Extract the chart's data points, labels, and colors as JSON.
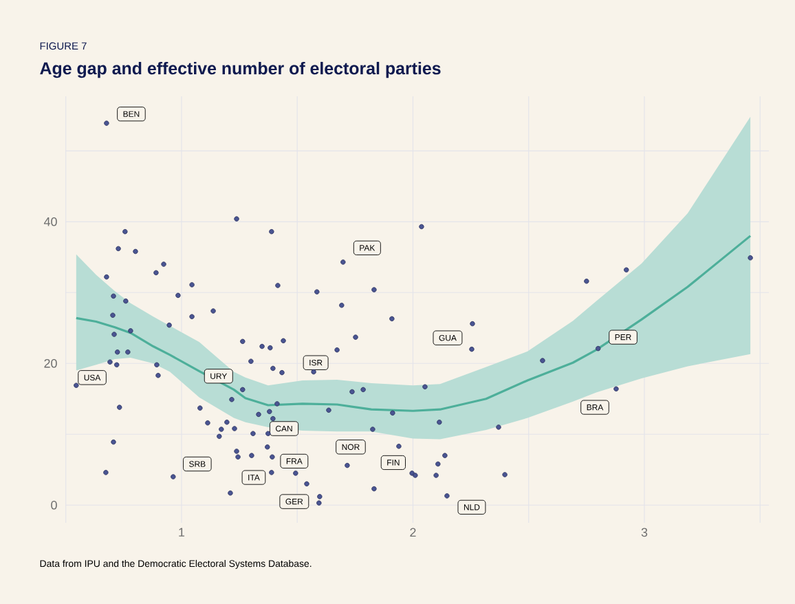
{
  "chart_data": {
    "type": "scatter",
    "subtitle": "FIGURE 7",
    "title": "Age gap and effective number of electoral parties",
    "xlim": [
      0.498,
      3.538
    ],
    "ylim": [
      -2.5,
      57.7
    ],
    "xticks": [
      {
        "value": 0.5,
        "label": null
      },
      1,
      {
        "value": 1.5,
        "label": null
      },
      2,
      {
        "value": 2.5,
        "label": null
      },
      3,
      {
        "value": 3.5,
        "label": null
      }
    ],
    "yticks": [
      0,
      {
        "value": 10,
        "label": null
      },
      20,
      {
        "value": 30,
        "label": null
      },
      40,
      {
        "value": 50,
        "label": null
      }
    ],
    "grid": true,
    "marker": "circle",
    "series": [
      {
        "color": "#4a5592",
        "x": [
          0.545,
          0.676,
          0.676,
          0.703,
          0.706,
          0.709,
          0.691,
          0.72,
          0.723,
          0.768,
          0.759,
          0.78,
          0.727,
          0.756,
          0.801,
          0.706,
          0.732,
          0.673,
          0.923,
          0.89,
          0.985,
          1.045,
          1.137,
          1.238,
          1.389,
          1.416,
          1.585,
          1.045,
          0.947,
          0.893,
          0.899,
          0.964,
          1.08,
          1.113,
          1.196,
          1.172,
          1.229,
          1.163,
          1.217,
          1.264,
          1.264,
          1.348,
          1.383,
          1.44,
          1.3,
          1.395,
          1.434,
          1.672,
          1.571,
          1.333,
          1.38,
          1.413,
          1.395,
          1.636,
          1.309,
          1.374,
          1.238,
          1.244,
          1.303,
          1.371,
          1.392,
          1.389,
          1.493,
          1.541,
          1.597,
          1.594,
          1.211,
          2.037,
          1.698,
          1.832,
          1.692,
          1.909,
          2.257,
          1.752,
          2.254,
          2.75,
          2.56,
          1.737,
          1.785,
          2.052,
          1.912,
          2.114,
          1.826,
          2.37,
          1.939,
          2.138,
          2.108,
          1.716,
          1.996,
          2.01,
          2.1,
          2.397,
          1.832,
          2.147,
          2.8,
          2.922,
          3.458,
          2.878
        ],
        "values": [
          16.9,
          53.9,
          32.2,
          26.8,
          29.5,
          24.1,
          20.2,
          19.8,
          21.6,
          21.6,
          28.8,
          24.6,
          36.2,
          38.6,
          35.8,
          8.9,
          13.8,
          4.6,
          34.0,
          32.8,
          29.6,
          31.1,
          27.4,
          40.4,
          38.6,
          31.0,
          30.1,
          26.6,
          25.4,
          19.8,
          18.3,
          4.0,
          13.7,
          11.6,
          11.7,
          10.7,
          10.8,
          9.7,
          14.9,
          16.3,
          23.1,
          22.4,
          22.2,
          23.2,
          20.3,
          19.3,
          18.7,
          21.9,
          18.8,
          12.8,
          13.2,
          14.3,
          12.2,
          13.4,
          10.1,
          10.1,
          7.6,
          6.8,
          7.0,
          8.2,
          6.8,
          4.6,
          4.5,
          3.0,
          1.2,
          0.3,
          1.7,
          39.3,
          34.3,
          30.4,
          28.2,
          26.3,
          25.6,
          23.7,
          22.0,
          31.6,
          20.4,
          16.0,
          16.3,
          16.7,
          13.0,
          11.7,
          10.7,
          11.0,
          8.3,
          7.0,
          5.8,
          5.6,
          4.5,
          4.2,
          4.2,
          4.3,
          2.3,
          1.3,
          22.1,
          33.2,
          34.9,
          16.4
        ]
      },
      {
        "type": "line",
        "marker": "none",
        "color": "#4daf9a",
        "x": [
          0.545,
          0.631,
          0.712,
          0.78,
          0.878,
          0.95,
          1.077,
          1.226,
          1.276,
          1.374,
          1.523,
          1.672,
          1.82,
          2.0,
          2.117,
          2.316,
          2.495,
          2.691,
          2.792,
          2.988,
          3.187,
          3.458
        ],
        "values": [
          26.4,
          25.9,
          25.1,
          24.3,
          22.4,
          21.2,
          18.9,
          16.3,
          15.1,
          14.1,
          14.3,
          14.2,
          13.5,
          13.3,
          13.5,
          15.0,
          17.6,
          20.1,
          21.9,
          26.2,
          30.8,
          38.0
        ],
        "upper": [
          35.4,
          32.5,
          30.2,
          28.5,
          26.6,
          25.3,
          23.0,
          18.8,
          18.0,
          16.9,
          17.6,
          17.7,
          17.2,
          16.9,
          17.1,
          19.5,
          21.7,
          26.0,
          28.8,
          34.1,
          41.2,
          54.8
        ],
        "lower": [
          19.0,
          19.8,
          20.6,
          20.8,
          20.0,
          18.8,
          15.2,
          12.3,
          11.7,
          11.0,
          10.5,
          10.4,
          10.4,
          9.4,
          9.3,
          10.6,
          12.3,
          14.6,
          15.9,
          17.9,
          19.6,
          21.3
        ]
      }
    ],
    "annotations": [
      {
        "text": "BEN",
        "x": 0.783,
        "y": 55.2
      },
      {
        "text": "USA",
        "x": 0.614,
        "y": 18.0
      },
      {
        "text": "URY",
        "x": 1.16,
        "y": 18.2
      },
      {
        "text": "ISR",
        "x": 1.58,
        "y": 20.1
      },
      {
        "text": "PAK",
        "x": 1.802,
        "y": 36.3
      },
      {
        "text": "GUA",
        "x": 2.15,
        "y": 23.6
      },
      {
        "text": "PER",
        "x": 2.908,
        "y": 23.7
      },
      {
        "text": "BRA",
        "x": 2.786,
        "y": 13.8
      },
      {
        "text": "CAN",
        "x": 1.443,
        "y": 10.8
      },
      {
        "text": "NOR",
        "x": 1.731,
        "y": 8.2
      },
      {
        "text": "FIN",
        "x": 1.915,
        "y": 6.0
      },
      {
        "text": "FRA",
        "x": 1.487,
        "y": 6.2
      },
      {
        "text": "SRB",
        "x": 1.068,
        "y": 5.8
      },
      {
        "text": "ITA",
        "x": 1.312,
        "y": 3.9
      },
      {
        "text": "GER",
        "x": 1.487,
        "y": 0.5
      },
      {
        "text": "NLD",
        "x": 2.254,
        "y": -0.3
      },
      "Data from IPU and the Democratic Electoral Systems Database."
    ]
  }
}
